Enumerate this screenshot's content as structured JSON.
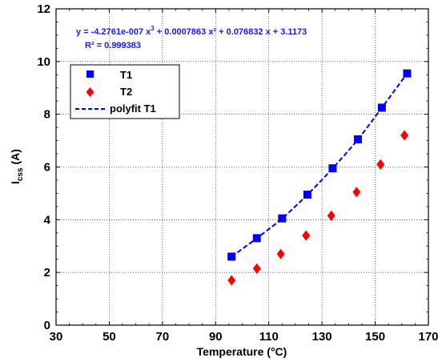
{
  "chart_data": {
    "type": "scatter",
    "title": "",
    "xlabel": "Temperature (°C)",
    "ylabel": {
      "main": "I",
      "sub": "css",
      "unit": " (A)"
    },
    "xlim": [
      30,
      170
    ],
    "ylim": [
      0,
      12
    ],
    "xticks": [
      "30",
      "50",
      "70",
      "90",
      "110",
      "130",
      "150",
      "170"
    ],
    "yticks": [
      "0",
      "2",
      "4",
      "6",
      "8",
      "10",
      "12"
    ],
    "grid": true,
    "legend_position": "top-left",
    "annotation": {
      "line1_part1": "y = -4.2761e-007 x",
      "line1_sup1": "3",
      "line1_part2": " + 0.0007863 x² + 0.076832 x + 3.1173",
      "line2": "R² = 0.999383"
    },
    "series": [
      {
        "name": "T1",
        "marker": "square",
        "color": "#0000ff",
        "x": [
          96,
          105.5,
          115,
          124.5,
          134,
          143.5,
          152.5,
          162
        ],
        "y": [
          2.6,
          3.3,
          4.05,
          4.95,
          5.95,
          7.05,
          8.25,
          9.55
        ]
      },
      {
        "name": "T2",
        "marker": "diamond",
        "color": "#ff0000",
        "x": [
          96,
          105.5,
          114.5,
          124,
          133.5,
          143,
          152,
          161
        ],
        "y": [
          1.7,
          2.15,
          2.7,
          3.4,
          4.15,
          5.05,
          6.1,
          7.2
        ]
      },
      {
        "name": "polyfit T1",
        "style": "dashed",
        "color": "#0000ff",
        "fit_range": [
          96,
          162
        ],
        "coefficients": [
          -4.2761e-07,
          0.0007863,
          0.076832,
          3.1173
        ],
        "anchor_points": [
          [
            96,
            2.6
          ],
          [
            105.5,
            3.3
          ],
          [
            115,
            4.05
          ],
          [
            124.5,
            4.95
          ],
          [
            134,
            5.95
          ],
          [
            143.5,
            7.05
          ],
          [
            152.5,
            8.25
          ],
          [
            162,
            9.55
          ]
        ]
      }
    ]
  }
}
